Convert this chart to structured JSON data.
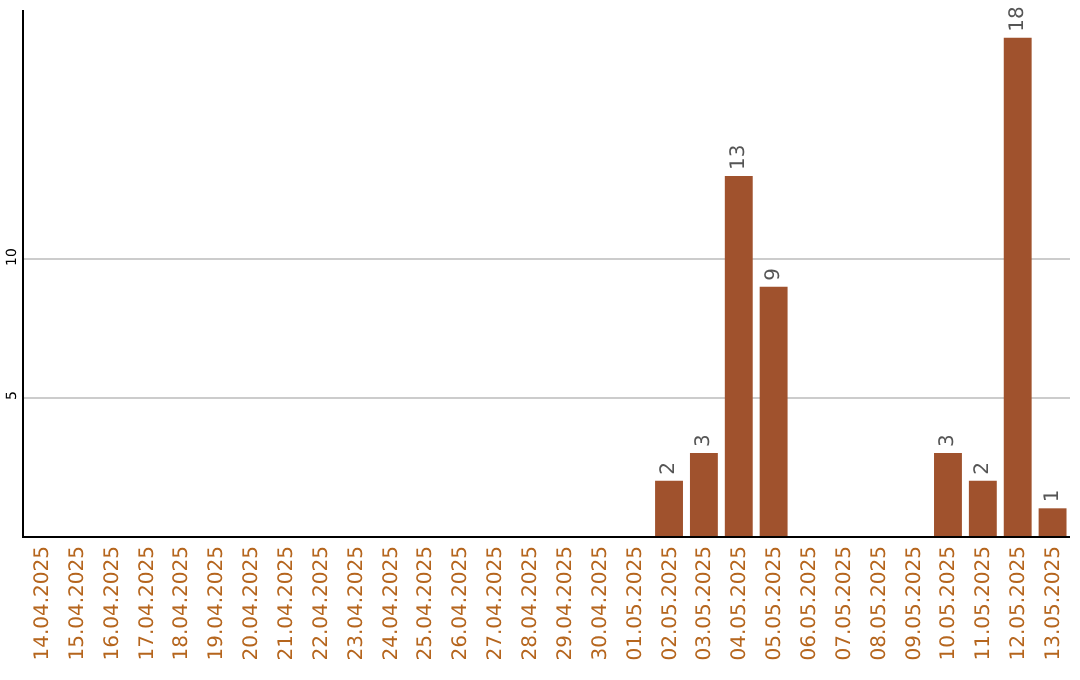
{
  "chart_data": {
    "type": "bar",
    "categories": [
      "14.04.2025",
      "15.04.2025",
      "16.04.2025",
      "17.04.2025",
      "18.04.2025",
      "19.04.2025",
      "20.04.2025",
      "21.04.2025",
      "22.04.2025",
      "23.04.2025",
      "24.04.2025",
      "25.04.2025",
      "26.04.2025",
      "27.04.2025",
      "28.04.2025",
      "29.04.2025",
      "30.04.2025",
      "01.05.2025",
      "02.05.2025",
      "03.05.2025",
      "04.05.2025",
      "05.05.2025",
      "06.05.2025",
      "07.05.2025",
      "08.05.2025",
      "09.05.2025",
      "10.05.2025",
      "11.05.2025",
      "12.05.2025",
      "13.05.2025"
    ],
    "values": [
      null,
      null,
      null,
      null,
      null,
      null,
      null,
      null,
      null,
      null,
      null,
      null,
      null,
      null,
      null,
      null,
      null,
      null,
      2,
      3,
      13,
      9,
      null,
      null,
      null,
      null,
      3,
      2,
      18,
      1
    ],
    "color": "#a0522d",
    "ylim": [
      0,
      19
    ],
    "yticks": [
      5,
      10
    ],
    "grid": "y",
    "data_labels": true
  }
}
